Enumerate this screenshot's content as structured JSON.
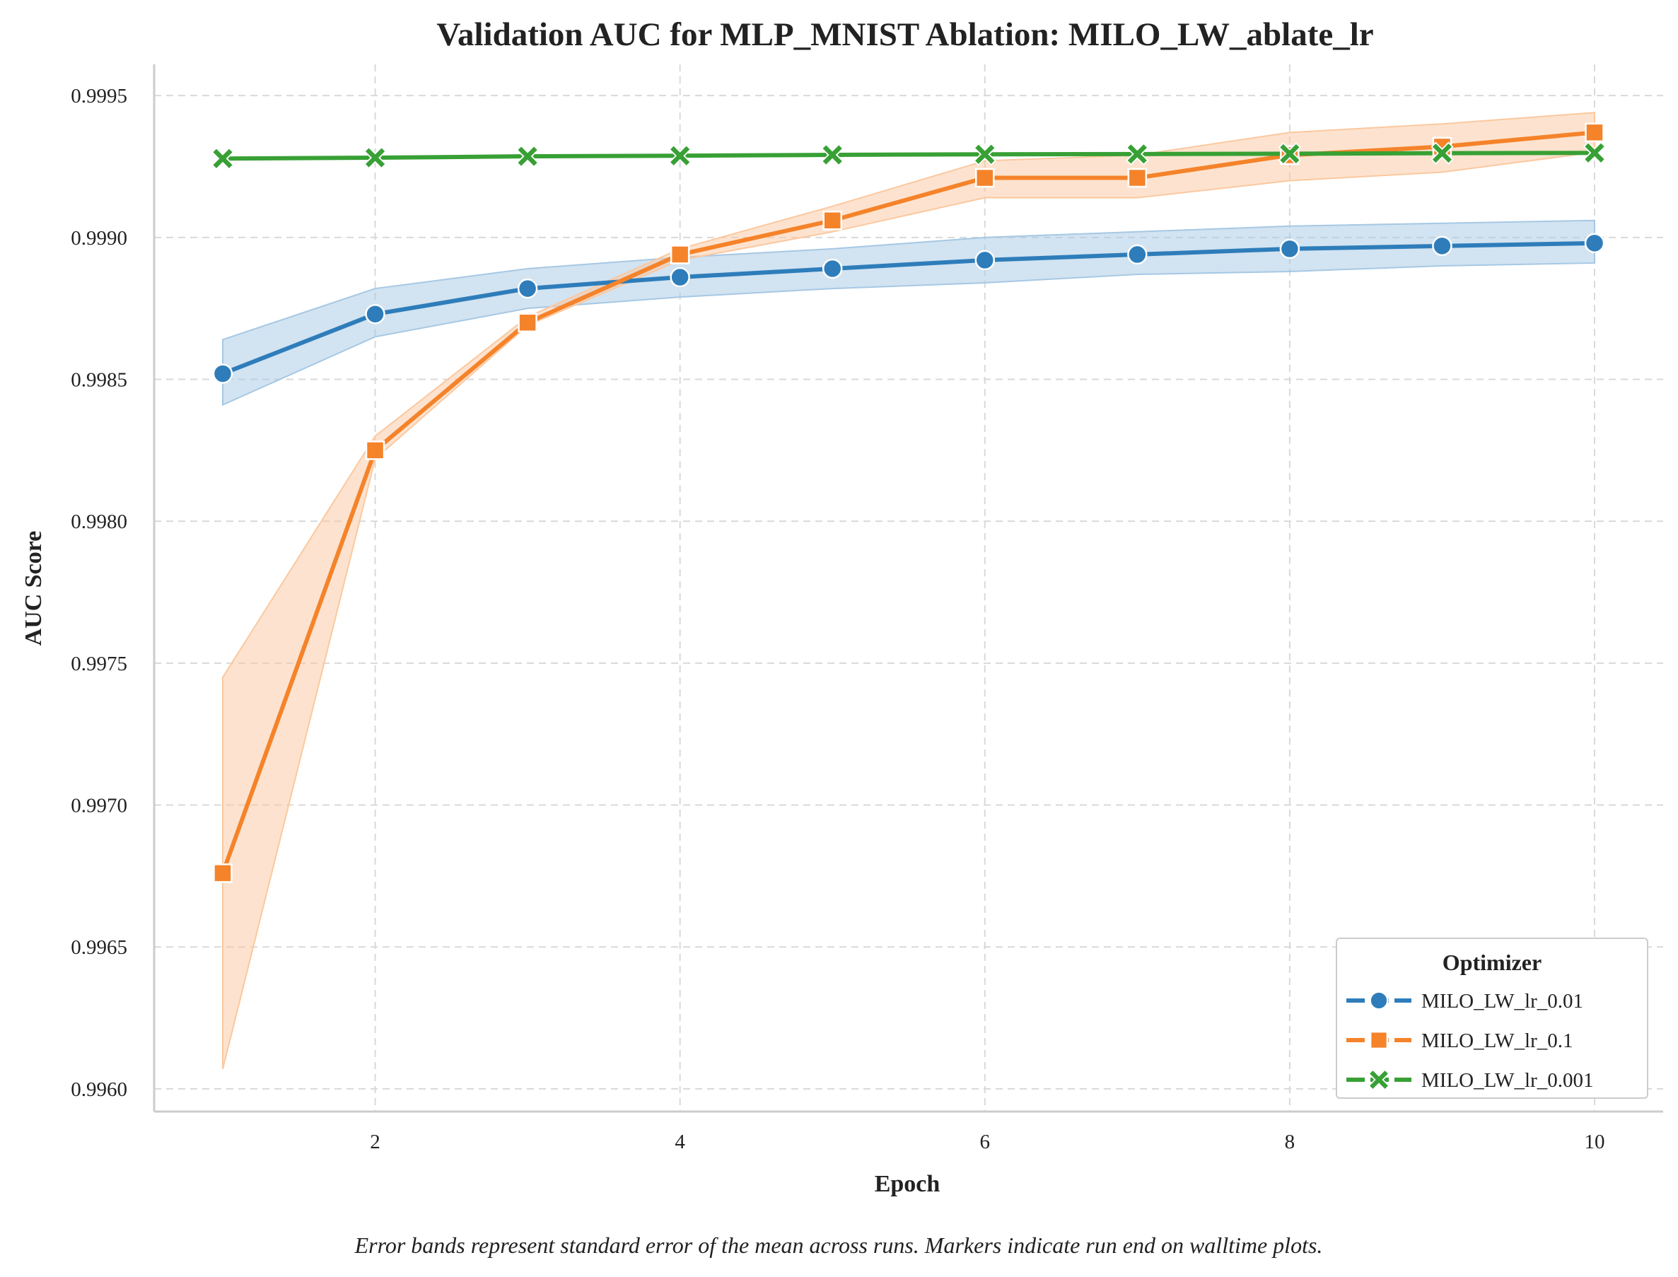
{
  "chart_data": {
    "type": "line",
    "title": "Validation AUC for MLP_MNIST Ablation: MILO_LW_ablate_lr",
    "xlabel": "Epoch",
    "ylabel": "AUC Score",
    "footnote": "Error bands represent standard error of the mean across runs. Markers indicate run end on walltime plots.",
    "x": [
      1,
      2,
      3,
      4,
      5,
      6,
      7,
      8,
      9,
      10
    ],
    "xlim": [
      0.55,
      10.45
    ],
    "ylim": [
      0.99592,
      0.99961
    ],
    "x_ticks": [
      2,
      4,
      6,
      8,
      10
    ],
    "x_tick_labels": [
      "2",
      "4",
      "6",
      "8",
      "10"
    ],
    "y_ticks": [
      0.996,
      0.9965,
      0.997,
      0.9975,
      0.998,
      0.9985,
      0.999,
      0.9995
    ],
    "y_tick_labels": [
      "0.9960",
      "0.9965",
      "0.9970",
      "0.9975",
      "0.9980",
      "0.9985",
      "0.9990",
      "0.9995"
    ],
    "grid": true,
    "legend": {
      "title": "Optimizer",
      "placement": "lower-right"
    },
    "series": [
      {
        "name": "MILO_LW_lr_0.01",
        "color": "#2e7dba",
        "band_color": "#a6c8e4",
        "marker": "circle",
        "values": [
          0.99852,
          0.99873,
          0.99882,
          0.99886,
          0.99889,
          0.99892,
          0.99894,
          0.99896,
          0.99897,
          0.99898
        ],
        "lower": [
          0.99841,
          0.99865,
          0.99875,
          0.99879,
          0.99882,
          0.99884,
          0.99887,
          0.99888,
          0.9989,
          0.99891
        ],
        "upper": [
          0.99864,
          0.99882,
          0.99889,
          0.99893,
          0.99896,
          0.999,
          0.99902,
          0.99904,
          0.99905,
          0.99906
        ]
      },
      {
        "name": "MILO_LW_lr_0.1",
        "color": "#f5832a",
        "band_color": "#fbc89f",
        "marker": "square",
        "values": [
          0.99676,
          0.99825,
          0.9987,
          0.99894,
          0.99906,
          0.99921,
          0.99921,
          0.99929,
          0.99932,
          0.99937
        ],
        "lower": [
          0.99607,
          0.99822,
          0.99869,
          0.99892,
          0.99902,
          0.99914,
          0.99914,
          0.9992,
          0.99923,
          0.9993
        ],
        "upper": [
          0.99745,
          0.9983,
          0.99872,
          0.99896,
          0.99911,
          0.99927,
          0.99929,
          0.99937,
          0.9994,
          0.99944
        ]
      },
      {
        "name": "MILO_LW_lr_0.001",
        "color": "#38a035",
        "band_color": "#9fd39b",
        "marker": "x",
        "values": [
          0.999278,
          0.999281,
          0.999286,
          0.999288,
          0.999291,
          0.999293,
          0.999294,
          0.999295,
          0.999297,
          0.999298
        ],
        "lower": [
          0.999276,
          0.999279,
          0.999284,
          0.999286,
          0.999289,
          0.999291,
          0.999292,
          0.999293,
          0.999295,
          0.999296
        ],
        "upper": [
          0.99928,
          0.999283,
          0.999288,
          0.99929,
          0.999293,
          0.999295,
          0.999296,
          0.999297,
          0.999299,
          0.9993
        ]
      }
    ]
  }
}
